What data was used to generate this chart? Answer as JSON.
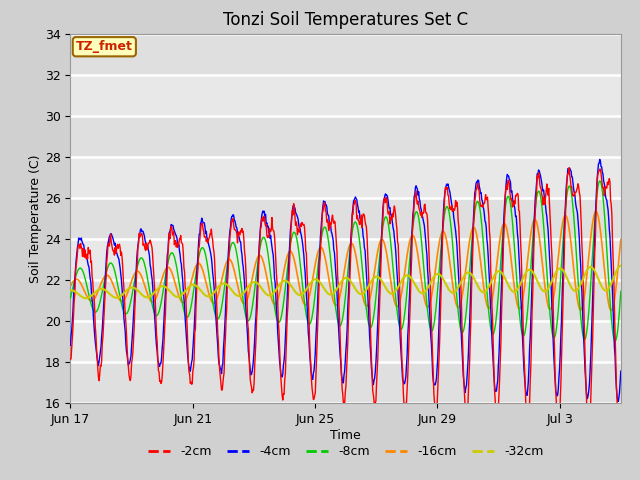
{
  "title": "Tonzi Soil Temperatures Set C",
  "xlabel": "Time",
  "ylabel": "Soil Temperature (C)",
  "ylim": [
    16,
    34
  ],
  "tick_positions": [
    0,
    4,
    8,
    12,
    16
  ],
  "tick_labels": [
    "Jun 17",
    "Jun 21",
    "Jun 25",
    "Jun 29",
    "Jul 3"
  ],
  "annotation_text": "TZ_fmet",
  "series_colors": [
    "#ff0000",
    "#0000ff",
    "#00cc00",
    "#ff8800",
    "#cccc00"
  ],
  "series_labels": [
    "-2cm",
    "-4cm",
    "-8cm",
    "-16cm",
    "-32cm"
  ],
  "grid_color": "#ffffff",
  "title_fontsize": 12,
  "label_fontsize": 9,
  "fig_bg": "#d0d0d0",
  "plot_bg": "#e8e8e8"
}
